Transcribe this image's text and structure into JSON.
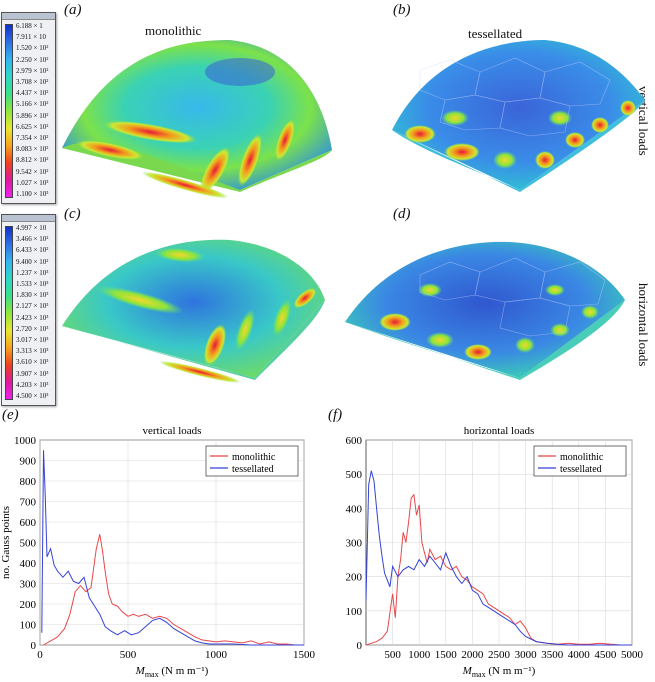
{
  "panels": {
    "a_label": "(a)",
    "b_label": "(b)",
    "c_label": "(c)",
    "d_label": "(d)",
    "e_label": "(e)",
    "f_label": "(f)",
    "top_monolithic": "monolithic",
    "top_tessellated": "tessellated",
    "side_vertical": "vertical loads",
    "side_horizontal": "horizontal loads"
  },
  "colorbars": {
    "top": [
      "6.188 × 1",
      "7.911 × 10",
      "1.520 × 10²",
      "2.250 × 10²",
      "2.979 × 10²",
      "3.708 × 10²",
      "4.437 × 10²",
      "5.166 × 10²",
      "5.896 × 10²",
      "6.625 × 10²",
      "7.354 × 10²",
      "8.083 × 10²",
      "8.812 × 10²",
      "9.542 × 10²",
      "1.027 × 10³",
      "1.100 × 10³"
    ],
    "bottom": [
      "4.997 × 10",
      "3.466 × 10²",
      "6.433 × 10²",
      "9.400 × 10²",
      "1.237 × 10³",
      "1.533 × 10³",
      "1.830 × 10³",
      "2.127 × 10³",
      "2.423 × 10³",
      "2.720 × 10³",
      "3.017 × 10³",
      "3.313 × 10³",
      "3.610 × 10³",
      "3.907 × 10³",
      "4.203 × 10³",
      "4.500 × 10³"
    ],
    "gradient": [
      "#1030c8",
      "#2f6fe6",
      "#33b5f0",
      "#2fd6c8",
      "#38e08a",
      "#8ce83a",
      "#e8e830",
      "#f7a51c",
      "#f0421a",
      "#e0189a",
      "#f020f0"
    ]
  },
  "chart_data": [
    {
      "type": "line",
      "title": "vertical loads",
      "xlabel_main": "M",
      "xlabel_sub": "max",
      "xlabel_unit": " (N m m⁻¹)",
      "ylabel": "no. Gauss points",
      "xlim": [
        0,
        1500
      ],
      "ylim": [
        0,
        1000
      ],
      "xticks": [
        0,
        500,
        1000,
        1500
      ],
      "yticks": [
        0,
        100,
        200,
        300,
        400,
        500,
        600,
        700,
        800,
        900,
        1000
      ],
      "legend_position": "top-right",
      "grid": true,
      "series": [
        {
          "name": "monolithic",
          "color": "#e8484b",
          "x": [
            20,
            60,
            100,
            140,
            170,
            200,
            230,
            260,
            290,
            320,
            340,
            355,
            370,
            390,
            410,
            440,
            470,
            500,
            530,
            560,
            600,
            640,
            680,
            720,
            760,
            800,
            840,
            880,
            920,
            960,
            1000,
            1050,
            1100,
            1150,
            1200,
            1250,
            1300,
            1350,
            1400,
            1450,
            1500
          ],
          "y": [
            0,
            20,
            40,
            80,
            150,
            260,
            290,
            260,
            280,
            470,
            540,
            460,
            360,
            250,
            200,
            190,
            160,
            140,
            150,
            140,
            150,
            130,
            140,
            130,
            100,
            80,
            60,
            40,
            25,
            20,
            15,
            20,
            15,
            10,
            20,
            5,
            15,
            5,
            5,
            0,
            0
          ]
        },
        {
          "name": "tessellated",
          "color": "#3442d8",
          "x": [
            10,
            20,
            30,
            40,
            60,
            80,
            100,
            130,
            160,
            190,
            220,
            250,
            280,
            310,
            340,
            370,
            400,
            440,
            480,
            520,
            560,
            600,
            640,
            680,
            720,
            760,
            800,
            840,
            880,
            920,
            960,
            1000,
            1100,
            1200,
            1300,
            1400,
            1500
          ],
          "y": [
            60,
            950,
            720,
            430,
            470,
            390,
            360,
            330,
            360,
            310,
            300,
            330,
            230,
            190,
            150,
            90,
            70,
            50,
            70,
            50,
            60,
            90,
            120,
            130,
            110,
            80,
            60,
            40,
            20,
            10,
            5,
            5,
            5,
            0,
            0,
            0,
            0
          ]
        }
      ]
    },
    {
      "type": "line",
      "title": "horizontal loads",
      "xlabel_main": "M",
      "xlabel_sub": "max",
      "xlabel_unit": " (N m m⁻¹)",
      "ylabel": "",
      "xlim": [
        0,
        5000
      ],
      "ylim": [
        0,
        600
      ],
      "xticks": [
        500,
        1000,
        1500,
        2000,
        2500,
        3000,
        3500,
        4000,
        4500,
        5000
      ],
      "yticks": [
        0,
        100,
        200,
        300,
        400,
        500,
        600
      ],
      "legend_position": "top-right",
      "grid": true,
      "series": [
        {
          "name": "monolithic",
          "color": "#e8484b",
          "x": [
            0,
            100,
            200,
            300,
            400,
            500,
            550,
            600,
            650,
            700,
            750,
            800,
            850,
            900,
            950,
            1000,
            1050,
            1100,
            1150,
            1200,
            1300,
            1400,
            1500,
            1600,
            1700,
            1800,
            1900,
            2000,
            2100,
            2200,
            2300,
            2400,
            2500,
            2600,
            2700,
            2800,
            2900,
            3000,
            3100,
            3200,
            3400,
            3600,
            3800,
            4000,
            4200,
            4400,
            4600,
            4800,
            5000
          ],
          "y": [
            0,
            5,
            10,
            20,
            40,
            150,
            80,
            200,
            250,
            330,
            300,
            360,
            430,
            440,
            380,
            410,
            300,
            270,
            240,
            280,
            250,
            260,
            230,
            220,
            230,
            200,
            190,
            170,
            160,
            150,
            120,
            110,
            100,
            90,
            80,
            60,
            70,
            50,
            20,
            10,
            5,
            2,
            5,
            2,
            2,
            5,
            2,
            0,
            0
          ]
        },
        {
          "name": "tessellated",
          "color": "#3442d8",
          "x": [
            0,
            50,
            100,
            150,
            200,
            250,
            300,
            350,
            400,
            450,
            500,
            600,
            700,
            800,
            900,
            1000,
            1100,
            1200,
            1300,
            1400,
            1500,
            1600,
            1700,
            1800,
            1900,
            2000,
            2100,
            2200,
            2300,
            2400,
            2500,
            2600,
            2700,
            2800,
            2900,
            3000,
            3200,
            3400,
            3600,
            3800,
            4000,
            4500,
            5000
          ],
          "y": [
            130,
            470,
            510,
            480,
            400,
            320,
            260,
            210,
            190,
            170,
            230,
            200,
            220,
            230,
            220,
            250,
            230,
            260,
            240,
            220,
            270,
            230,
            200,
            180,
            200,
            160,
            150,
            120,
            110,
            100,
            90,
            80,
            70,
            60,
            40,
            25,
            10,
            5,
            2,
            0,
            0,
            0,
            0
          ]
        }
      ]
    }
  ]
}
